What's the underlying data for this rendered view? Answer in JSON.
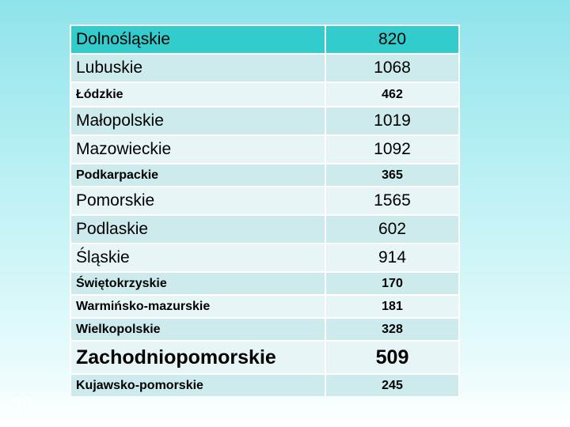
{
  "table": {
    "rows": [
      {
        "name": "Dolnośląskie",
        "value": "820"
      },
      {
        "name": "Lubuskie",
        "value": "1068"
      },
      {
        "name": "Łódzkie",
        "value": "462"
      },
      {
        "name": "Małopolskie",
        "value": "1019"
      },
      {
        "name": "Mazowieckie",
        "value": "1092"
      },
      {
        "name": "Podkarpackie",
        "value": "365"
      },
      {
        "name": "Pomorskie",
        "value": "1565"
      },
      {
        "name": "Podlaskie",
        "value": "602"
      },
      {
        "name": "Śląskie",
        "value": "914"
      },
      {
        "name": "Świętokrzyskie",
        "value": "170"
      },
      {
        "name": "Warmińsko-mazurskie",
        "value": "181"
      },
      {
        "name": "Wielkopolskie",
        "value": "328"
      },
      {
        "name": "Zachodniopomorskie",
        "value": "509"
      },
      {
        "name": "Kujawsko-pomorskie",
        "value": "245"
      }
    ]
  },
  "slide": {
    "number": "30"
  },
  "colors": {
    "header_fill": "#33cccc",
    "row_fill_a": "#cdeaec",
    "row_fill_b": "#e7f5f6"
  }
}
